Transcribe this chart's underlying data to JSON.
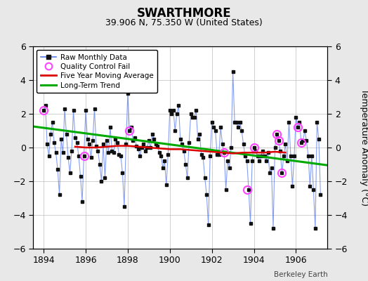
{
  "title": "SWARTHMORE",
  "subtitle": "39.906 N, 75.350 W (United States)",
  "ylabel": "Temperature Anomaly (°C)",
  "watermark": "Berkeley Earth",
  "xlim": [
    1893.5,
    1907.5
  ],
  "ylim": [
    -6,
    6
  ],
  "yticks": [
    -6,
    -4,
    -2,
    0,
    2,
    4,
    6
  ],
  "xticks": [
    1894,
    1896,
    1898,
    1900,
    1902,
    1904,
    1906
  ],
  "bg_color": "#e8e8e8",
  "plot_bg_color": "#ffffff",
  "grid_color": "#c8c8c8",
  "raw_line_color": "#5577ee",
  "raw_line_alpha": 0.7,
  "raw_marker_color": "#111111",
  "moving_avg_color": "#dd0000",
  "trend_color": "#00aa00",
  "qc_fail_color": "#ff44ff",
  "legend_labels": [
    "Raw Monthly Data",
    "Quality Control Fail",
    "Five Year Moving Average",
    "Long-Term Trend"
  ],
  "raw_x": [
    1894.0,
    1894.083,
    1894.167,
    1894.25,
    1894.333,
    1894.417,
    1894.5,
    1894.583,
    1894.667,
    1894.75,
    1894.833,
    1894.917,
    1895.0,
    1895.083,
    1895.167,
    1895.25,
    1895.333,
    1895.417,
    1895.5,
    1895.583,
    1895.667,
    1895.75,
    1895.833,
    1895.917,
    1896.0,
    1896.083,
    1896.167,
    1896.25,
    1896.333,
    1896.417,
    1896.5,
    1896.583,
    1896.667,
    1896.75,
    1896.833,
    1896.917,
    1897.0,
    1897.083,
    1897.167,
    1897.25,
    1897.333,
    1897.417,
    1897.5,
    1897.583,
    1897.667,
    1897.75,
    1897.833,
    1897.917,
    1898.0,
    1898.083,
    1898.167,
    1898.25,
    1898.333,
    1898.417,
    1898.5,
    1898.583,
    1898.667,
    1898.75,
    1898.833,
    1898.917,
    1899.0,
    1899.083,
    1899.167,
    1899.25,
    1899.333,
    1899.417,
    1899.5,
    1899.583,
    1899.667,
    1899.75,
    1899.833,
    1899.917,
    1900.0,
    1900.083,
    1900.167,
    1900.25,
    1900.333,
    1900.417,
    1900.5,
    1900.583,
    1900.667,
    1900.75,
    1900.833,
    1900.917,
    1901.0,
    1901.083,
    1901.167,
    1901.25,
    1901.333,
    1901.417,
    1901.5,
    1901.583,
    1901.667,
    1901.75,
    1901.833,
    1901.917,
    1902.0,
    1902.083,
    1902.167,
    1902.25,
    1902.333,
    1902.417,
    1902.5,
    1902.583,
    1902.667,
    1902.75,
    1902.833,
    1902.917,
    1903.0,
    1903.083,
    1903.167,
    1903.25,
    1903.333,
    1903.417,
    1903.5,
    1903.583,
    1903.667,
    1903.75,
    1903.833,
    1903.917,
    1904.0,
    1904.083,
    1904.167,
    1904.25,
    1904.333,
    1904.417,
    1904.5,
    1904.583,
    1904.667,
    1904.75,
    1904.833,
    1904.917,
    1905.0,
    1905.083,
    1905.167,
    1905.25,
    1905.333,
    1905.417,
    1905.5,
    1905.583,
    1905.667,
    1905.75,
    1905.833,
    1905.917,
    1906.0,
    1906.083,
    1906.167,
    1906.25,
    1906.333,
    1906.417,
    1906.5,
    1906.583,
    1906.667,
    1906.75,
    1906.833,
    1906.917,
    1907.0,
    1907.083,
    1907.167
  ],
  "raw_y": [
    2.2,
    2.5,
    0.2,
    -0.5,
    0.8,
    1.5,
    0.3,
    -0.3,
    -1.3,
    -2.8,
    0.5,
    -0.3,
    2.3,
    0.8,
    -0.6,
    -1.5,
    -0.2,
    2.2,
    0.6,
    0.3,
    -0.5,
    -1.7,
    -3.2,
    -0.5,
    2.2,
    0.5,
    0.2,
    -0.6,
    0.4,
    2.3,
    0.1,
    -0.2,
    -1.0,
    -2.0,
    0.2,
    -1.8,
    0.4,
    -0.3,
    1.2,
    -0.2,
    -0.3,
    0.5,
    0.3,
    -0.4,
    -0.5,
    -1.5,
    -3.5,
    0.2,
    3.2,
    1.0,
    1.2,
    0.4,
    0.6,
    0.1,
    -0.1,
    -0.5,
    0.0,
    0.2,
    -0.2,
    0.0,
    0.4,
    0.0,
    0.8,
    0.5,
    0.2,
    0.1,
    -0.3,
    -0.5,
    -1.2,
    -0.8,
    -2.2,
    -0.4,
    2.2,
    2.0,
    2.2,
    1.0,
    2.0,
    2.5,
    0.5,
    0.2,
    -0.2,
    -1.0,
    -1.8,
    0.3,
    2.0,
    1.8,
    1.8,
    2.2,
    0.5,
    0.8,
    -0.4,
    -0.6,
    -1.8,
    -2.8,
    -4.6,
    -0.5,
    1.5,
    1.2,
    1.0,
    -0.4,
    -0.4,
    1.2,
    0.2,
    -0.3,
    -2.5,
    -0.8,
    -1.2,
    0.0,
    4.5,
    1.5,
    1.5,
    1.2,
    1.5,
    1.0,
    0.2,
    -0.5,
    -0.8,
    -2.5,
    -4.5,
    -0.8,
    0.0,
    -0.2,
    -0.5,
    -0.8,
    -0.5,
    -0.2,
    -0.5,
    -0.8,
    -0.3,
    -1.5,
    -1.2,
    -4.8,
    0.0,
    0.8,
    0.4,
    -0.2,
    -1.5,
    -0.5,
    0.2,
    -0.8,
    1.5,
    -0.5,
    -2.3,
    -0.5,
    1.8,
    1.2,
    1.5,
    0.3,
    0.4,
    1.0,
    0.4,
    -0.5,
    -2.3,
    -0.5,
    -2.5,
    -4.8,
    1.5,
    0.5,
    -2.8
  ],
  "qc_fail_x": [
    1894.0,
    1895.917,
    1898.083,
    1902.583,
    1903.667,
    1904.0,
    1905.083,
    1905.167,
    1905.333,
    1906.083,
    1906.25
  ],
  "qc_fail_y": [
    2.2,
    -0.5,
    1.0,
    -0.3,
    -2.5,
    0.0,
    0.8,
    0.4,
    -1.5,
    1.2,
    0.3
  ],
  "trend_x": [
    1893.5,
    1907.5
  ],
  "trend_y": [
    1.25,
    -1.05
  ],
  "moving_avg_x": [
    1895.5,
    1896.0,
    1896.5,
    1897.0,
    1897.5,
    1898.0,
    1898.5,
    1899.0,
    1899.5,
    1900.0,
    1900.5,
    1901.0,
    1901.5,
    1902.0,
    1902.5,
    1903.0,
    1903.5,
    1904.0,
    1904.5,
    1905.0,
    1905.5
  ],
  "moving_avg_y": [
    0.05,
    0.0,
    0.0,
    0.05,
    0.1,
    0.1,
    0.05,
    0.0,
    -0.05,
    -0.1,
    -0.1,
    -0.15,
    -0.2,
    -0.25,
    -0.3,
    -0.35,
    -0.3,
    -0.3,
    -0.3,
    -0.25,
    -0.3
  ]
}
